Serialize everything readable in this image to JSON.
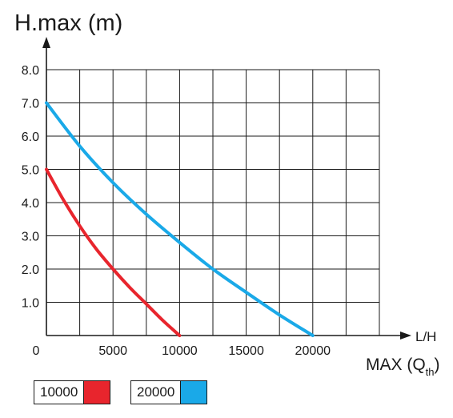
{
  "chart_data": {
    "type": "line",
    "ylabel": "H.max (m)",
    "xlabel_main": "MAX (Q",
    "xlabel_sub": "th",
    "xlabel_close": ")",
    "x_unit": "L/H",
    "xlim": [
      0,
      25000
    ],
    "ylim": [
      0,
      8.0
    ],
    "x_ticks": [
      0,
      5000,
      10000,
      15000,
      20000
    ],
    "x_tick_labels": [
      "0",
      "5000",
      "10000",
      "15000",
      "20000"
    ],
    "y_ticks": [
      1.0,
      2.0,
      3.0,
      4.0,
      5.0,
      6.0,
      7.0,
      8.0
    ],
    "y_tick_labels": [
      "1.0",
      "2.0",
      "3.0",
      "4.0",
      "5.0",
      "6.0",
      "7.0",
      "8.0"
    ],
    "grid": true,
    "grid_x_step": 2500,
    "grid_y_step": 1.0,
    "series": [
      {
        "name": "10000",
        "color": "#e8252d",
        "x": [
          0,
          1250,
          2500,
          3750,
          5000,
          6250,
          7500,
          8750,
          10000
        ],
        "y": [
          5.0,
          4.1,
          3.3,
          2.6,
          2.0,
          1.45,
          0.95,
          0.45,
          0.0
        ]
      },
      {
        "name": "20000",
        "color": "#1aa9e8",
        "x": [
          0,
          2500,
          5000,
          7500,
          10000,
          12500,
          15000,
          17500,
          20000
        ],
        "y": [
          7.0,
          5.7,
          4.6,
          3.65,
          2.8,
          2.0,
          1.3,
          0.62,
          0.0
        ]
      }
    ],
    "legend_placement": "bottom-left"
  },
  "legend": [
    {
      "label": "10000",
      "color": "#e8252d"
    },
    {
      "label": "20000",
      "color": "#1aa9e8"
    }
  ]
}
